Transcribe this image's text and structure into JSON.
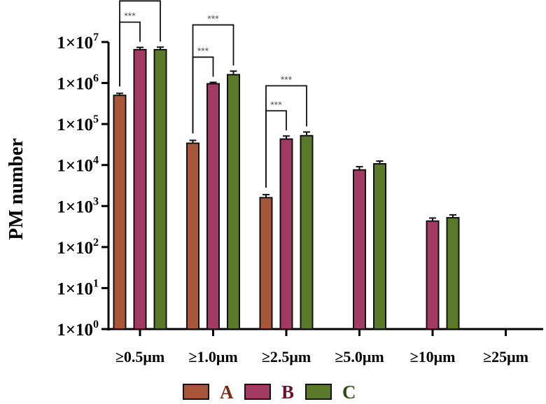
{
  "chart_data": {
    "type": "bar",
    "ylabel": "PM number",
    "xlabel": "",
    "yscale": "log",
    "ylim": [
      1,
      10000000
    ],
    "ytick_labels": [
      "1×10⁰",
      "1×10¹",
      "1×10²",
      "1×10³",
      "1×10⁴",
      "1×10⁵",
      "1×10⁶",
      "1×10⁷"
    ],
    "categories": [
      "≥0.5μm",
      "≥1.0μm",
      "≥2.5μm",
      "≥5.0μm",
      "≥10μm",
      "≥25μm"
    ],
    "series": [
      {
        "name": "A",
        "color": "#A9573A",
        "values": [
          500000,
          34000,
          1600,
          null,
          null,
          null
        ],
        "errors": [
          60000,
          6000,
          300,
          null,
          null,
          null
        ]
      },
      {
        "name": "B",
        "color": "#A23A64",
        "values": [
          6500000,
          960000,
          43000,
          7600,
          430,
          null
        ],
        "errors": [
          900000,
          80000,
          8000,
          1500,
          80,
          null
        ]
      },
      {
        "name": "C",
        "color": "#5A7A2A",
        "values": [
          6500000,
          1600000,
          52000,
          10700,
          520,
          null
        ],
        "errors": [
          1000000,
          350000,
          12000,
          1800,
          90,
          null
        ]
      }
    ],
    "significance": [
      {
        "category": "≥0.5μm",
        "from": "A",
        "to": "B",
        "label": "***"
      },
      {
        "category": "≥0.5μm",
        "from": "A",
        "to": "C",
        "label": "***"
      },
      {
        "category": "≥1.0μm",
        "from": "A",
        "to": "B",
        "label": "***"
      },
      {
        "category": "≥1.0μm",
        "from": "A",
        "to": "C",
        "label": "***"
      },
      {
        "category": "≥2.5μm",
        "from": "A",
        "to": "B",
        "label": "***"
      },
      {
        "category": "≥2.5μm",
        "from": "A",
        "to": "C",
        "label": "***"
      }
    ],
    "legend_position": "bottom",
    "legend_label_colors": [
      "#7A2A10",
      "#6A1030",
      "#2F4A15"
    ],
    "grid": false
  }
}
